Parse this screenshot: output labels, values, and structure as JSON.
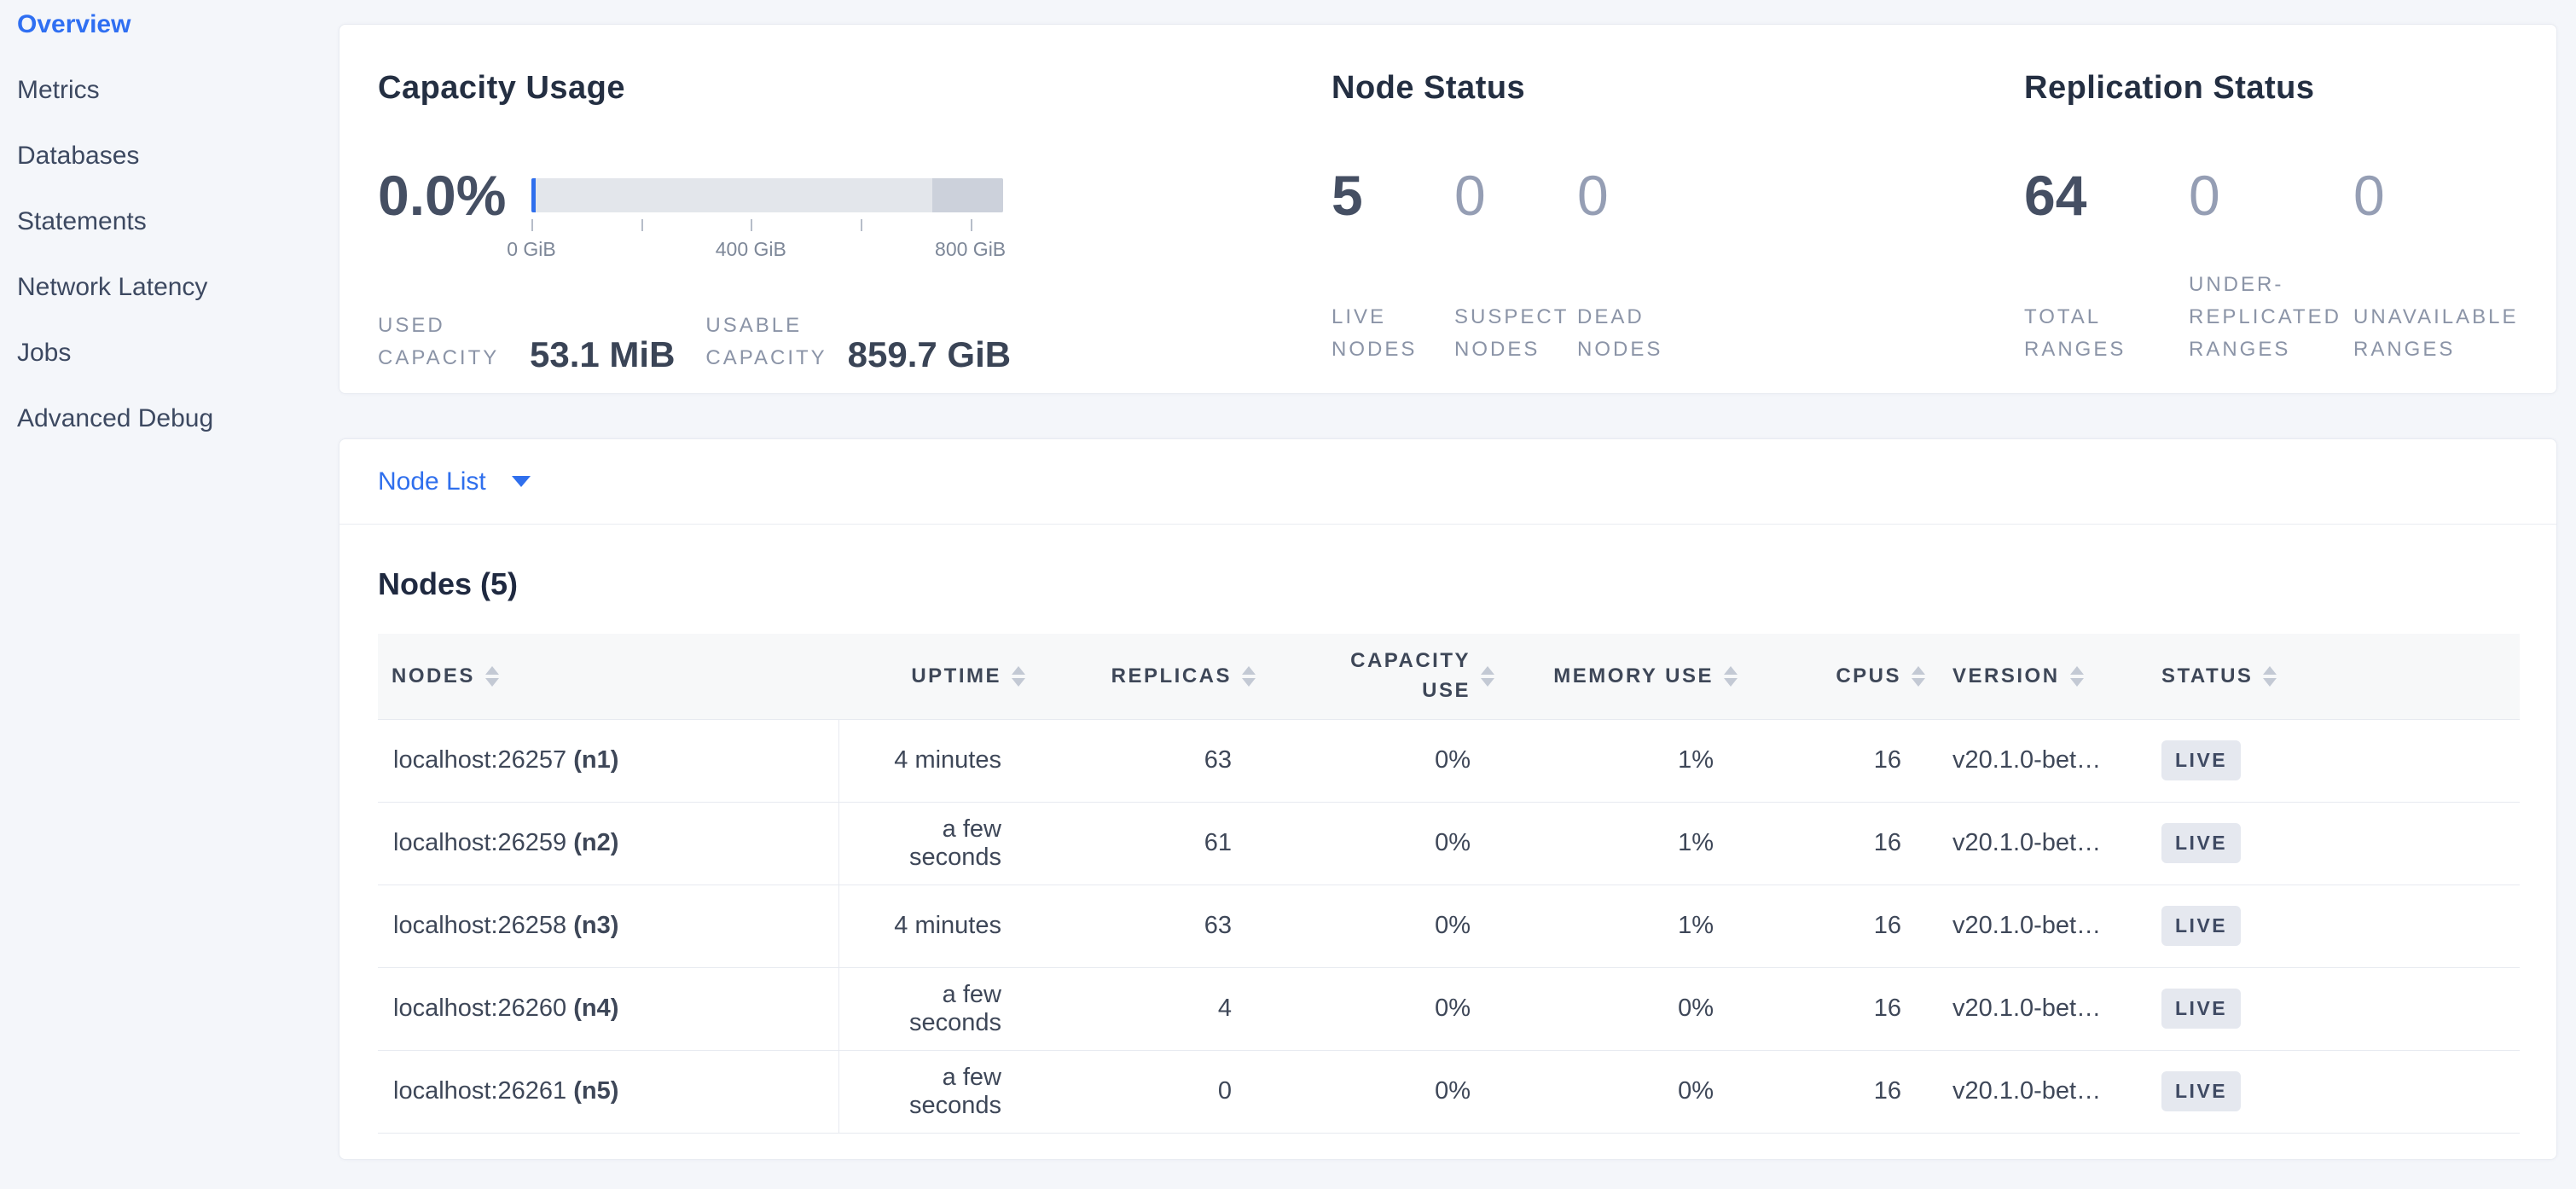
{
  "colors": {
    "accent_blue": "#2f6fed",
    "page_background": "#f4f6fa",
    "badge_background": "#e5e8ef",
    "bar_fill": "#e3e6eb",
    "bar_dark_segment": "#ccd1db",
    "bar_used": "#2f6fed"
  },
  "sidebar": {
    "items": [
      {
        "label": "Overview",
        "active": true
      },
      {
        "label": "Metrics",
        "active": false
      },
      {
        "label": "Databases",
        "active": false
      },
      {
        "label": "Statements",
        "active": false
      },
      {
        "label": "Network Latency",
        "active": false
      },
      {
        "label": "Jobs",
        "active": false
      },
      {
        "label": "Advanced Debug",
        "active": false
      }
    ]
  },
  "summary": {
    "capacity": {
      "title": "Capacity Usage",
      "percent": "0.0%",
      "bar": {
        "total_gib": 859.7,
        "used_value_gib": 0.052,
        "dark_segment_start_gib": 730,
        "ticks": [
          {
            "value_gib": 0,
            "label": "0 GiB"
          },
          {
            "value_gib": 200,
            "label": ""
          },
          {
            "value_gib": 400,
            "label": "400 GiB"
          },
          {
            "value_gib": 600,
            "label": ""
          },
          {
            "value_gib": 800,
            "label": "800 GiB"
          }
        ]
      },
      "used": {
        "l1": "USED",
        "l2": "CAPACITY",
        "value": "53.1 MiB"
      },
      "usable": {
        "l1": "USABLE",
        "l2": "CAPACITY",
        "value": "859.7 GiB"
      }
    },
    "node_status": {
      "title": "Node Status",
      "stats": [
        {
          "name": "live-nodes",
          "value": "5",
          "lines": [
            "LIVE",
            "NODES"
          ],
          "primary": true
        },
        {
          "name": "suspect-nodes",
          "value": "0",
          "lines": [
            "SUSPECT",
            "NODES"
          ],
          "primary": false
        },
        {
          "name": "dead-nodes",
          "value": "0",
          "lines": [
            "DEAD",
            "NODES"
          ],
          "primary": false
        }
      ]
    },
    "replication": {
      "title": "Replication Status",
      "stats": [
        {
          "name": "total-ranges",
          "value": "64",
          "lines": [
            "TOTAL",
            "RANGES"
          ],
          "primary": true
        },
        {
          "name": "under-replicated-ranges",
          "value": "0",
          "lines": [
            "UNDER-",
            "REPLICATED",
            "RANGES"
          ],
          "primary": false
        },
        {
          "name": "unavailable-ranges",
          "value": "0",
          "lines": [
            "UNAVAILABLE",
            "RANGES"
          ],
          "primary": false
        }
      ]
    }
  },
  "node_list": {
    "dropdown_label": "Node List",
    "section_title": "Nodes (5)",
    "table": {
      "columns": [
        {
          "key": "nodes",
          "label": "NODES"
        },
        {
          "key": "uptime",
          "label": "UPTIME"
        },
        {
          "key": "replicas",
          "label": "REPLICAS"
        },
        {
          "key": "capacity_use",
          "label": "CAPACITY USE"
        },
        {
          "key": "memory_use",
          "label": "MEMORY USE"
        },
        {
          "key": "cpus",
          "label": "CPUS"
        },
        {
          "key": "version",
          "label": "VERSION"
        },
        {
          "key": "status",
          "label": "STATUS"
        }
      ],
      "rows": [
        {
          "nodes_address": "localhost:26257",
          "nodes_id": "(n1)",
          "uptime": "4 minutes",
          "replicas": "63",
          "capacity_use": "0%",
          "memory_use": "1%",
          "cpus": "16",
          "version": "v20.1.0-bet…",
          "status": "LIVE"
        },
        {
          "nodes_address": "localhost:26259",
          "nodes_id": "(n2)",
          "uptime": "a few seconds",
          "replicas": "61",
          "capacity_use": "0%",
          "memory_use": "1%",
          "cpus": "16",
          "version": "v20.1.0-bet…",
          "status": "LIVE"
        },
        {
          "nodes_address": "localhost:26258",
          "nodes_id": "(n3)",
          "uptime": "4 minutes",
          "replicas": "63",
          "capacity_use": "0%",
          "memory_use": "1%",
          "cpus": "16",
          "version": "v20.1.0-bet…",
          "status": "LIVE"
        },
        {
          "nodes_address": "localhost:26260",
          "nodes_id": "(n4)",
          "uptime": "a few seconds",
          "replicas": "4",
          "capacity_use": "0%",
          "memory_use": "0%",
          "cpus": "16",
          "version": "v20.1.0-bet…",
          "status": "LIVE"
        },
        {
          "nodes_address": "localhost:26261",
          "nodes_id": "(n5)",
          "uptime": "a few seconds",
          "replicas": "0",
          "capacity_use": "0%",
          "memory_use": "0%",
          "cpus": "16",
          "version": "v20.1.0-bet…",
          "status": "LIVE"
        }
      ]
    }
  }
}
